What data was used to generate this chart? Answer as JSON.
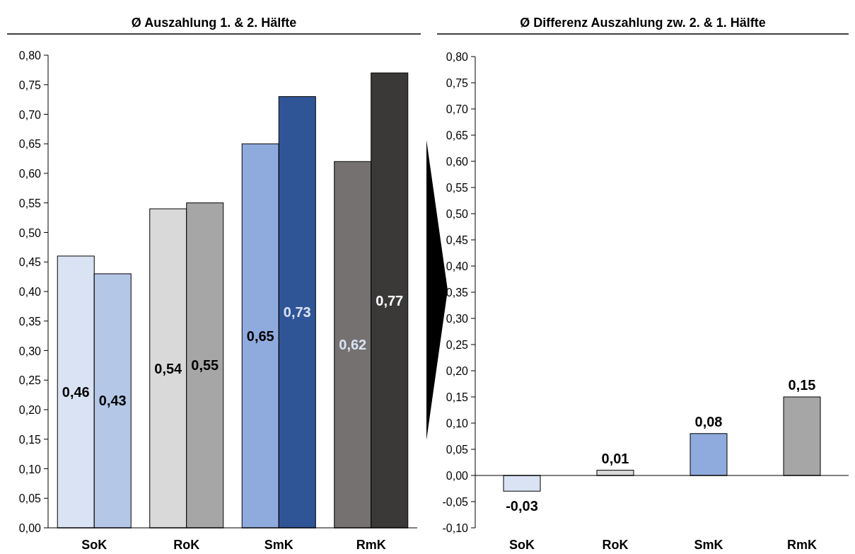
{
  "chart_data": [
    {
      "type": "bar",
      "title": "Ø Auszahlung 1. & 2. Hälfte",
      "categories": [
        "SoK",
        "RoK",
        "SmK",
        "RmK"
      ],
      "series": [
        {
          "colors": [
            "#dae3f3",
            "#d9d9d9",
            "#8faadc",
            "#767171"
          ],
          "values": [
            0.46,
            0.54,
            0.65,
            0.62
          ],
          "value_labels": [
            "0,46",
            "0,54",
            "0,65",
            "0,62"
          ]
        },
        {
          "colors": [
            "#b4c7e7",
            "#a6a6a6",
            "#2f5597",
            "#3b3838"
          ],
          "values": [
            0.43,
            0.55,
            0.73,
            0.77
          ],
          "value_labels": [
            "0,43",
            "0,55",
            "0,73",
            "0,77"
          ]
        }
      ],
      "ylim": [
        0,
        0.8
      ],
      "yticks": [
        {
          "value": 0,
          "label": "0,00"
        },
        {
          "value": 0.05,
          "label": "0,05"
        },
        {
          "value": 0.1,
          "label": "0,10"
        },
        {
          "value": 0.15,
          "label": "0,15"
        },
        {
          "value": 0.2,
          "label": "0,20"
        },
        {
          "value": 0.25,
          "label": "0,25"
        },
        {
          "value": 0.3,
          "label": "0,30"
        },
        {
          "value": 0.35,
          "label": "0,35"
        },
        {
          "value": 0.4,
          "label": "0,40"
        },
        {
          "value": 0.45,
          "label": "0,45"
        },
        {
          "value": 0.5,
          "label": "0,50"
        },
        {
          "value": 0.55,
          "label": "0,55"
        },
        {
          "value": 0.6,
          "label": "0,60"
        },
        {
          "value": 0.65,
          "label": "0,65"
        },
        {
          "value": 0.7,
          "label": "0,70"
        },
        {
          "value": 0.75,
          "label": "0,75"
        },
        {
          "value": 0.8,
          "label": "0,80"
        }
      ]
    },
    {
      "type": "bar",
      "title": "Ø Differenz Auszahlung zw. 2. & 1. Hälfte",
      "categories": [
        "SoK",
        "RoK",
        "SmK",
        "RmK"
      ],
      "series": [
        {
          "colors": [
            "#dae3f3",
            "#d9d9d9",
            "#8faadc",
            "#a6a6a6"
          ],
          "values": [
            -0.03,
            0.01,
            0.08,
            0.15
          ],
          "value_labels": [
            "-0,03",
            "0,01",
            "0,08",
            "0,15"
          ]
        }
      ],
      "ylim": [
        -0.1,
        0.8
      ],
      "yticks": [
        {
          "value": -0.1,
          "label": "-0,10"
        },
        {
          "value": -0.05,
          "label": "-0,05"
        },
        {
          "value": 0,
          "label": "0,00"
        },
        {
          "value": 0.05,
          "label": "0,05"
        },
        {
          "value": 0.1,
          "label": "0,10"
        },
        {
          "value": 0.15,
          "label": "0,15"
        },
        {
          "value": 0.2,
          "label": "0,20"
        },
        {
          "value": 0.25,
          "label": "0,25"
        },
        {
          "value": 0.3,
          "label": "0,30"
        },
        {
          "value": 0.35,
          "label": "0,35"
        },
        {
          "value": 0.4,
          "label": "0,40"
        },
        {
          "value": 0.45,
          "label": "0,45"
        },
        {
          "value": 0.5,
          "label": "0,50"
        },
        {
          "value": 0.55,
          "label": "0,55"
        },
        {
          "value": 0.6,
          "label": "0,60"
        },
        {
          "value": 0.65,
          "label": "0,65"
        },
        {
          "value": 0.7,
          "label": "0,70"
        },
        {
          "value": 0.75,
          "label": "0,75"
        },
        {
          "value": 0.8,
          "label": "0,80"
        }
      ]
    }
  ]
}
